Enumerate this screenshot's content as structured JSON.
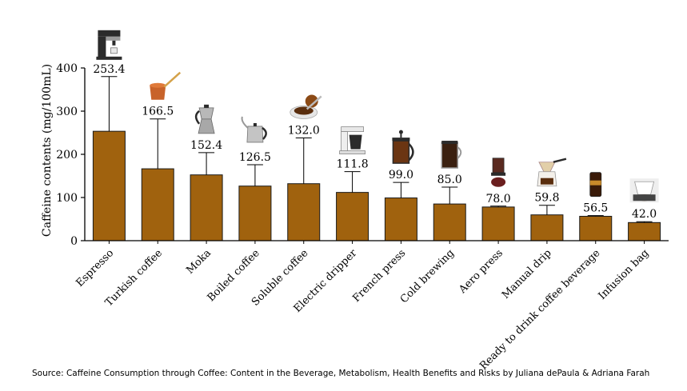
{
  "chart_data": {
    "type": "bar",
    "categories": [
      "Espresso",
      "Turkish coffee",
      "Moka",
      "Boiled coffee",
      "Soluble coffee",
      "Electric dripper",
      "French press",
      "Cold brewing",
      "Aero press",
      "Manual drip",
      "Ready to drink coffee beverage",
      "Infusion bag"
    ],
    "values": [
      253.4,
      166.5,
      152.4,
      126.5,
      132.0,
      111.8,
      99.0,
      85.0,
      78.0,
      59.8,
      56.5,
      42.0
    ],
    "value_labels": [
      "253.4",
      "166.5",
      "152.4",
      "126.5",
      "132.0",
      "111.8",
      "99.0",
      "85.0",
      "78.0",
      "59.8",
      "56.5",
      "42.0"
    ],
    "error_upper": [
      380,
      282,
      204,
      176,
      238,
      160,
      135,
      124,
      80,
      82,
      58,
      44
    ],
    "ylabel": "Caffeine contents (mg/100mL)",
    "xlabel": "",
    "title": "",
    "ylim": [
      0,
      400
    ],
    "yticks": [
      0,
      100,
      200,
      300,
      400
    ],
    "grid": false,
    "bar_color": "#a0620e",
    "icons": [
      "espresso-machine-icon",
      "turkish-cezve-icon",
      "moka-pot-icon",
      "boiled-coffee-kettle-icon",
      "soluble-coffee-jar-icon",
      "electric-dripper-icon",
      "french-press-icon",
      "cold-brew-tower-icon",
      "aero-press-icon",
      "manual-drip-icon",
      "ready-to-drink-can-icon",
      "infusion-bag-icon"
    ]
  },
  "source": "Source: Caffeine Consumption through Coffee: Content in the Beverage, Metabolism, Health Benefits and Risks by Juliana dePaula & Adriana Farah"
}
